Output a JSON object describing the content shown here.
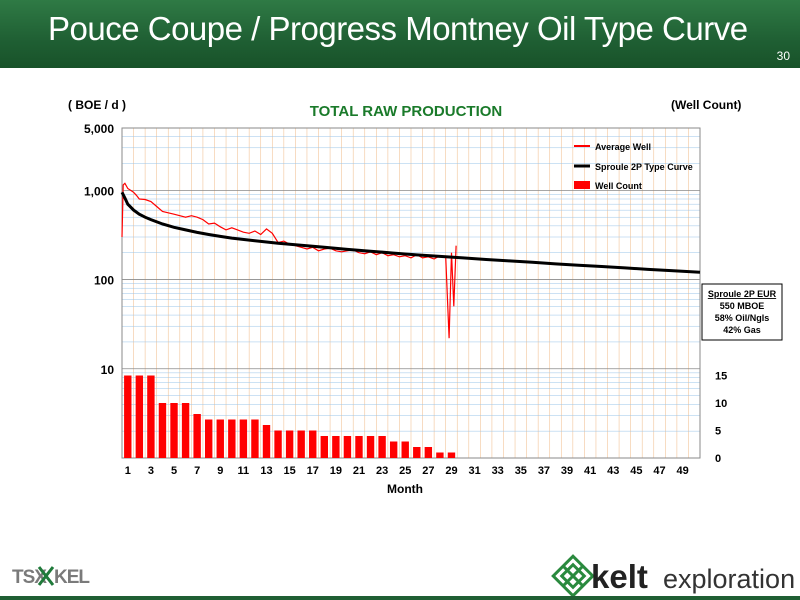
{
  "slide": {
    "title": "Pouce Coupe / Progress Montney Oil Type Curve",
    "page_number": "30"
  },
  "footer": {
    "tsx_text": "TSX",
    "kel_text": "KEL",
    "company_name": "kelt",
    "company_suffix": "exploration"
  },
  "colors": {
    "header_green": "#1f5f33",
    "average_well": "#ff0000",
    "type_curve": "#000000",
    "well_count": "#ff0000",
    "title_green": "#1a7a2a"
  },
  "eur_box": {
    "title": "Sproule 2P EUR",
    "line1": "550 MBOE",
    "line2": "58% Oil/Ngls",
    "line3": "42% Gas"
  },
  "chart_data": {
    "type": "line",
    "title": "TOTAL RAW PRODUCTION",
    "ylabel": "( BOE / d )",
    "y2label": "(Well Count)",
    "xlabel": "Month",
    "y_scale": "log",
    "ylim": [
      1,
      5000
    ],
    "y_ticks": [
      10,
      100,
      1000,
      5000
    ],
    "y_tick_labels": [
      "10",
      "100",
      "1,000",
      "5,000"
    ],
    "y2lim": [
      0,
      60
    ],
    "y2_ticks": [
      0,
      5,
      10,
      15
    ],
    "xlim": [
      0.5,
      50.5
    ],
    "x_ticks": [
      1,
      3,
      5,
      7,
      9,
      11,
      13,
      15,
      17,
      19,
      21,
      23,
      25,
      27,
      29,
      31,
      33,
      35,
      37,
      39,
      41,
      43,
      45,
      47,
      49
    ],
    "grid": true,
    "legend_position": "top-right",
    "series": [
      {
        "name": "Average Well",
        "kind": "line",
        "x": [
          0.5,
          0.6,
          0.75,
          1,
          1.25,
          1.5,
          1.75,
          2,
          2.5,
          3,
          3.5,
          4,
          4.5,
          5,
          5.5,
          6,
          6.5,
          7,
          7.5,
          8,
          8.5,
          9,
          9.5,
          10,
          10.5,
          11,
          11.5,
          12,
          12.5,
          13,
          13.5,
          14,
          14.5,
          15,
          15.5,
          16,
          16.5,
          17,
          17.5,
          18,
          18.5,
          19,
          19.5,
          20,
          20.5,
          21,
          21.5,
          22,
          22.5,
          23,
          23.5,
          24,
          24.5,
          25,
          25.5,
          26,
          26.5,
          27,
          27.5,
          28,
          28.5,
          28.8,
          29,
          29.2,
          29.4
        ],
        "values": [
          300,
          1150,
          1200,
          1050,
          1000,
          950,
          880,
          800,
          790,
          750,
          660,
          580,
          560,
          540,
          520,
          500,
          520,
          500,
          470,
          420,
          430,
          390,
          360,
          380,
          360,
          340,
          330,
          350,
          320,
          370,
          330,
          260,
          270,
          250,
          240,
          230,
          220,
          230,
          210,
          220,
          225,
          210,
          205,
          210,
          215,
          200,
          195,
          205,
          190,
          200,
          185,
          190,
          180,
          185,
          175,
          190,
          175,
          180,
          170,
          185,
          180,
          22,
          200,
          50,
          240
        ]
      },
      {
        "name": "Sproule 2P Type Curve",
        "kind": "line",
        "x": [
          0.5,
          0.75,
          1,
          1.5,
          2,
          2.5,
          3,
          4,
          5,
          6,
          7,
          8,
          9,
          10,
          12,
          14,
          16,
          18,
          20,
          22,
          24,
          26,
          28,
          30,
          32,
          34,
          36,
          38,
          40,
          42,
          44,
          46,
          48,
          50.5
        ],
        "values": [
          950,
          820,
          700,
          600,
          540,
          500,
          470,
          420,
          385,
          360,
          338,
          320,
          305,
          292,
          272,
          256,
          242,
          230,
          218,
          208,
          198,
          189,
          182,
          175,
          168,
          162,
          156,
          150,
          145,
          140,
          135,
          130,
          126,
          121
        ]
      },
      {
        "name": "Well Count",
        "kind": "bar",
        "x": [
          1,
          2,
          3,
          4,
          5,
          6,
          7,
          8,
          9,
          10,
          11,
          12,
          13,
          14,
          15,
          16,
          17,
          18,
          19,
          20,
          21,
          22,
          23,
          24,
          25,
          26,
          27,
          28,
          29
        ],
        "values": [
          15,
          15,
          15,
          10,
          10,
          10,
          8,
          7,
          7,
          7,
          7,
          7,
          6,
          5,
          5,
          5,
          5,
          4,
          4,
          4,
          4,
          4,
          4,
          3,
          3,
          2,
          2,
          1,
          1
        ]
      }
    ]
  }
}
